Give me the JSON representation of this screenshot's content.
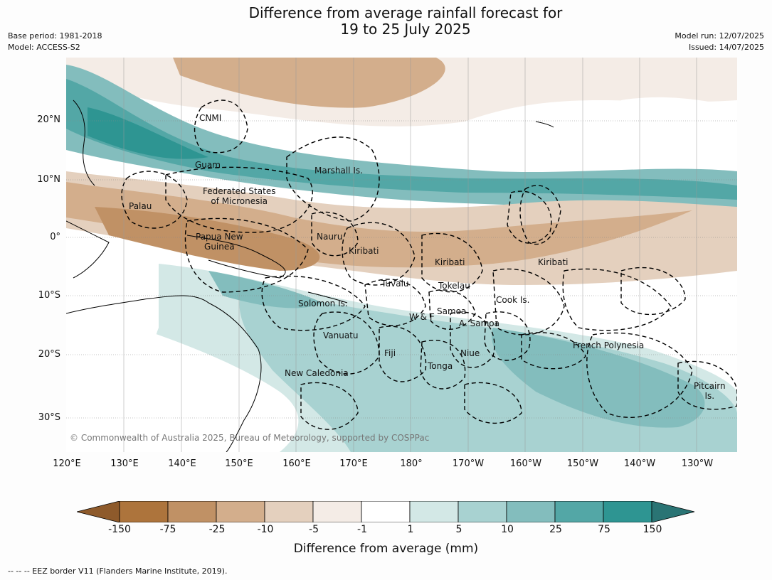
{
  "title": {
    "line1": "Difference from average rainfall forecast for",
    "line2": "19 to 25 July 2025"
  },
  "meta": {
    "base_period": "Base period: 1981-2018",
    "model": "Model: ACCESS-S2",
    "model_run": "Model run: 12/07/2025",
    "issued": "Issued: 14/07/2025"
  },
  "axes": {
    "y_labels": [
      "20°N",
      "10°N",
      "0°",
      "10°S",
      "20°S",
      "30°S"
    ],
    "x_labels": [
      "120°E",
      "130°E",
      "140°E",
      "150°E",
      "160°E",
      "170°E",
      "180°",
      "170°W",
      "160°W",
      "150°W",
      "140°W",
      "130°W"
    ]
  },
  "places": {
    "cnmi": "CNMI",
    "guam": "Guam",
    "marshall": "Marshall Is.",
    "fsm1": "Federated States",
    "fsm2": "of Micronesia",
    "palau": "Palau",
    "png1": "Papua New",
    "png2": "Guinea",
    "nauru": "Nauru",
    "kiribati_w": "Kiribati",
    "kiribati_c": "Kiribati",
    "kiribati_e": "Kiribati",
    "tuvalu": "Tuvalu",
    "tokelau": "Tokelau",
    "cook": "Cook Is.",
    "solomon": "Solomon Is.",
    "wf": "W & F",
    "samoa": "Samoa",
    "asamoa": "A. Samoa",
    "vanuatu": "Vanuatu",
    "fiji": "Fiji",
    "niue": "Niue",
    "tonga": "Tonga",
    "new_caledonia": "New Caledonia",
    "french_polynesia": "French Polynesia",
    "pitcairn1": "Pitcairn",
    "pitcairn2": "Is."
  },
  "copyright": "© Commonwealth of Australia 2025, Bureau of Meteorology, supported by COSPPac",
  "colorbar": {
    "title": "Difference from average (mm)",
    "ticks": [
      "-150",
      "-75",
      "-25",
      "-10",
      "-5",
      "-1",
      "1",
      "5",
      "10",
      "25",
      "75",
      "150"
    ],
    "colors": [
      "#8e5a2b",
      "#ad743c",
      "#c09165",
      "#d3ae8c",
      "#e4d0be",
      "#f4ece6",
      "#ffffff",
      "#d3e8e6",
      "#a8d2d1",
      "#83bdbd",
      "#53a7a6",
      "#2e9592",
      "#2a7474"
    ]
  },
  "footer": "--  --  -- EEZ border V11 (Flanders Marine Institute, 2019)."
}
